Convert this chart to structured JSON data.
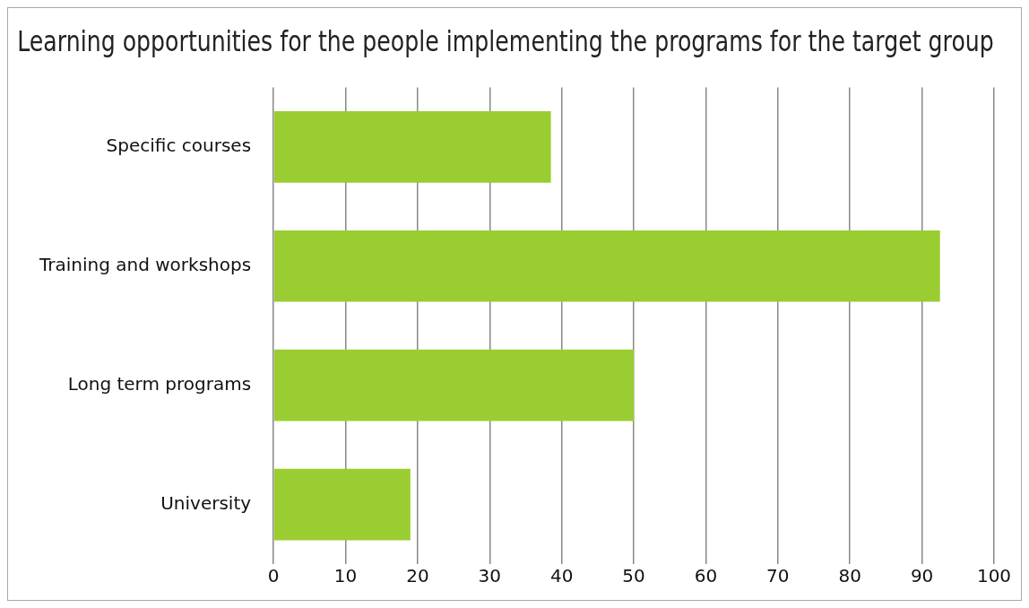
{
  "chart_data": {
    "type": "bar",
    "orientation": "horizontal",
    "title": "Learning opportunities for the people implementing the programs for the target group",
    "categories": [
      "Specific courses",
      "Training and workshops",
      "Long term programs",
      "University"
    ],
    "values": [
      38.5,
      92.5,
      50,
      19
    ],
    "color": "#9acd32",
    "xlim": [
      0,
      100
    ],
    "xticks": [
      0,
      10,
      20,
      30,
      40,
      50,
      60,
      70,
      80,
      90,
      100
    ],
    "grid": "x",
    "legend": false
  }
}
